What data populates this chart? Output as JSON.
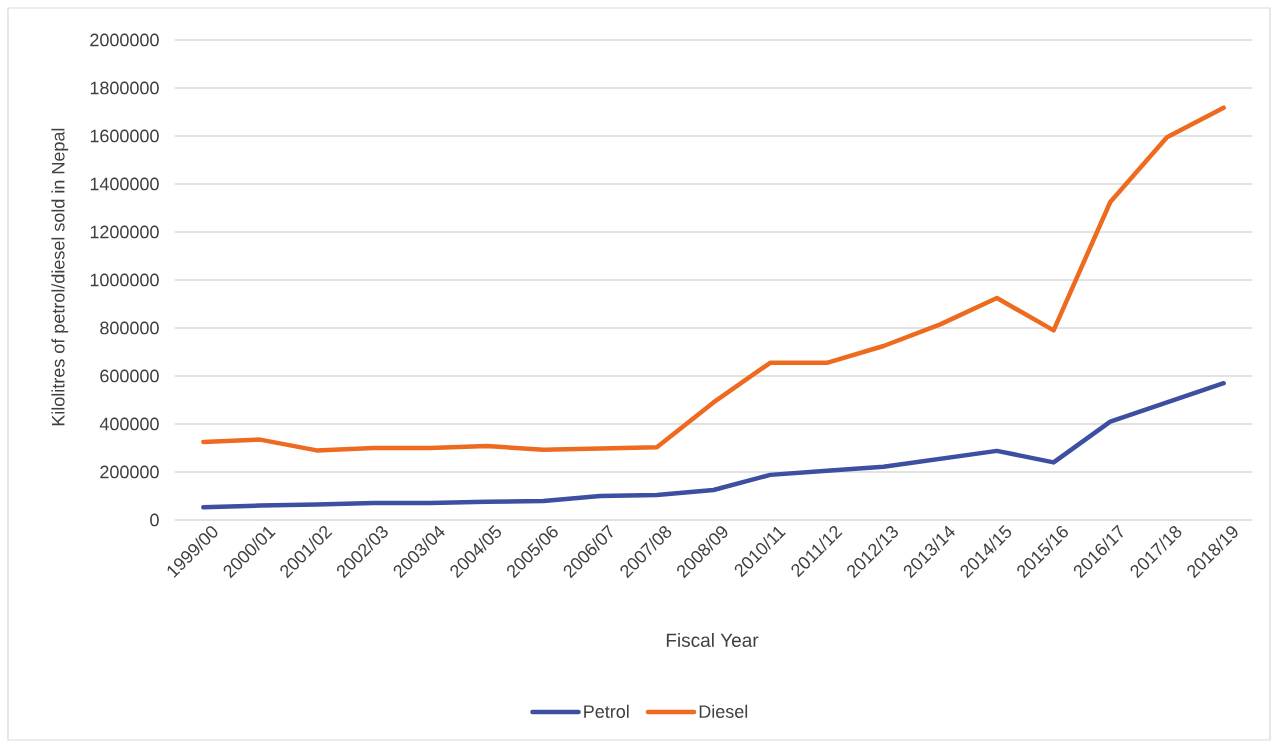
{
  "chart_data": {
    "type": "line",
    "xlabel": "Fiscal Year",
    "ylabel": "Kilolitres of petrol/diesel sold in Nepal",
    "categories": [
      "1999/00",
      "2000/01",
      "2001/02",
      "2002/03",
      "2003/04",
      "2004/05",
      "2005/06",
      "2006/07",
      "2007/08",
      "2008/09",
      "2010/11",
      "2011/12",
      "2012/13",
      "2013/14",
      "2014/15",
      "2015/16",
      "2016/17",
      "2017/18",
      "2018/19"
    ],
    "series": [
      {
        "name": "Petrol",
        "color": "#3c4fa0",
        "values": [
          53000,
          60000,
          65000,
          71000,
          71000,
          76000,
          79000,
          100000,
          104000,
          125000,
          188000,
          205000,
          222000,
          255000,
          288000,
          240000,
          410000,
          490000,
          570000
        ]
      },
      {
        "name": "Diesel",
        "color": "#ee6a1f",
        "values": [
          325000,
          335000,
          290000,
          300000,
          300000,
          308000,
          293000,
          298000,
          303000,
          490000,
          655000,
          655000,
          725000,
          815000,
          925000,
          790000,
          1325000,
          1595000,
          1718000
        ]
      }
    ],
    "ylim": [
      0,
      2000000
    ],
    "yticks": [
      0,
      200000,
      400000,
      600000,
      800000,
      1000000,
      1200000,
      1400000,
      1600000,
      1800000,
      2000000
    ],
    "grid": "y",
    "legend": "bottom",
    "marker": "none",
    "line_style": "solid"
  }
}
